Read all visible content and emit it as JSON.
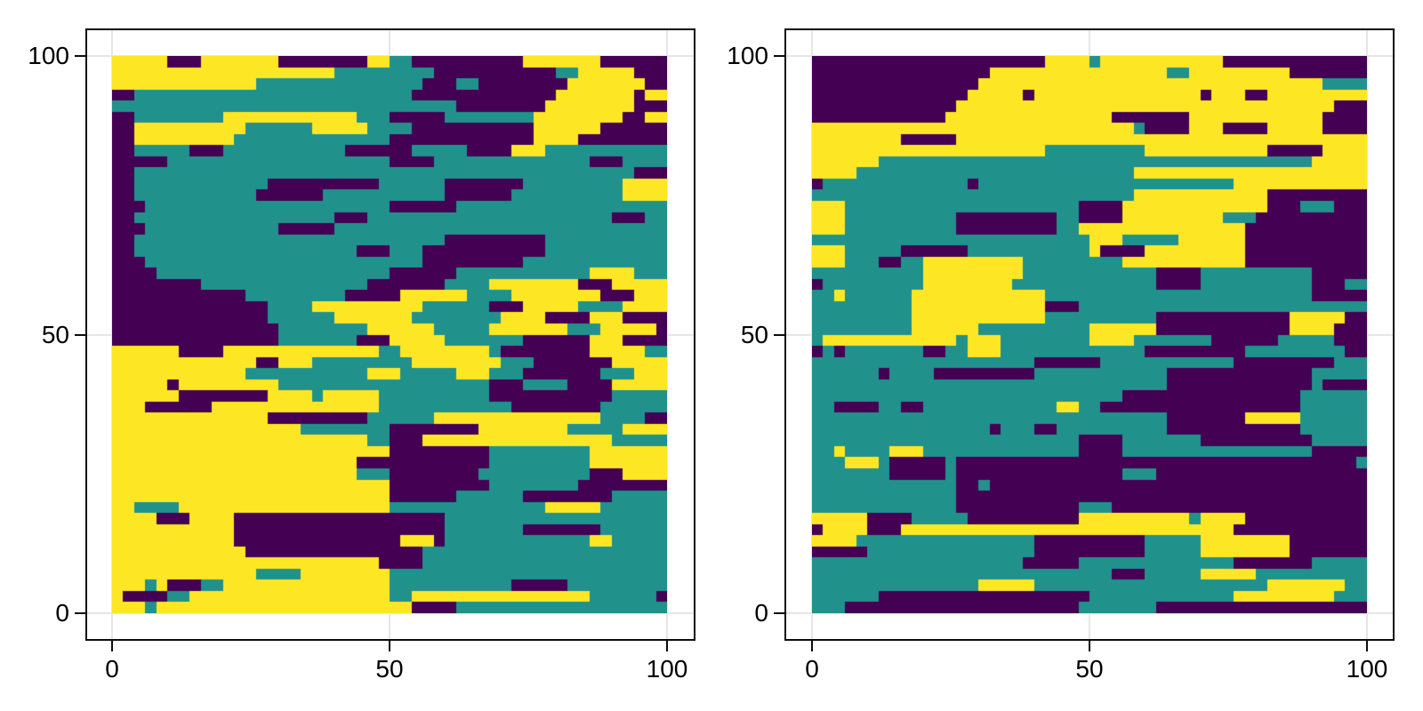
{
  "figure": {
    "background": "#ffffff",
    "description": "Two categorical random-field heatmap panels side by side"
  },
  "chart_data": {
    "type": "heatmap",
    "title": "",
    "xlabel": "",
    "ylabel": "",
    "x_range": [
      0,
      100
    ],
    "y_range": [
      0,
      100
    ],
    "axis_padding_units": 5,
    "x_ticks": [
      "0",
      "50",
      "100"
    ],
    "x_tick_values": [
      0,
      50,
      100
    ],
    "y_ticks": [
      "0",
      "50",
      "100"
    ],
    "y_tick_values": [
      0,
      50,
      100
    ],
    "grid": "light-gray-at-ticks",
    "legend": "none",
    "classes": [
      {
        "code": 0,
        "name": "class-1-purple",
        "color": "#440154"
      },
      {
        "code": 1,
        "name": "class-2-teal",
        "color": "#21918c"
      },
      {
        "code": 2,
        "name": "class-3-yellow",
        "color": "#fde725"
      }
    ],
    "grid_encoding": "Each panel is a 50x50 downsampled grid (cell = 2x2 data units). rows_rle lists rows from y=100 (top) to y=0 (bottom); tokens are codexcount, comma separated, summing to 50 per row.",
    "panels": [
      {
        "name": "left",
        "rows_rle": [
          "2x5,0x3,2x7,0x8,2x2,1x2,0x10,2x7,0x6",
          "2x20,1x9,0x11,1x2,2x5,0x3",
          "2x13,1x15,0x3,1x2,0x8,2x7,0x2",
          "0x2,1x25,0x13,2x7,0x1,2x2",
          "1x31,0x8,2x8,0x3",
          "0x2,1x8,2x12,1x3,0x5,1x8,2x8,0x2,2x2",
          "0x2,2x10,1x6,2x5,1x4,0x11,2x6,0x6",
          "0x2,2x9,1x14,0x13,2x4,0x8",
          "0x2,1x5,0x3,1x11,0x6,1x5,0x4,2x3,1x11",
          "0x5,1x20,0x4,1x14,0x3,1x4",
          "0x2,1x45,0x3",
          "0x2,1x12,0x10,1x6,0x7,1x9,2x4",
          "0x2,1x11,0x6,1x11,0x6,1x10,2x4",
          "0x3,1x22,0x6,1x19",
          "0x2,1x18,0x3,1x22,0x3,1x2",
          "0x3,1x12,0x5,1x30",
          "0x2,1x28,0x9,1x11",
          "0x2,1x20,0x3,1x3,0x11,1x11",
          "0x3,1x25,0x9,1x13",
          "0x4,1x21,0x6,1x12,2x4,1x3",
          "0x8,1x15,0x7,1x4,2x8,0x3,2x5",
          "0x12,1x9,0x5,2x6,1x4,2x8,0x3,2x3",
          "0x14,1x4,2x10,1x6,0x3,2x5,1x4,2x4",
          "0x14,1x6,2x7,1x8,2x4,0x4,2x3,0x4",
          "0x15,1x8,2x6,1x5,2x7,1x3,2x5,0x1",
          "0x15,1x7,0x3,2x5,1x7,0x6,2x3,0x4",
          "2x6,0x4,2x14,1x2,2x8,1x1,0x8,2x5,1x2",
          "2x13,0x2,2x3,1x9,2x8,1x3,0x7,2x5",
          "2x12,1x11,2x3,1x5,2x3,1x3,0x7,1x3,2x3",
          "2x5,0x1,2x9,1x19,0x3,1x4,0x4,2x5",
          "2x6,0x8,2x4,1x1,2x5,1x10,0x11,1x5",
          "2x3,0x6,2x15,1x12,0x8,1x6",
          "2x14,0x9,1x6,2x15,1x4,0x2",
          "2x17,1x8,0x8,2x8,1x5,2x4",
          "2x23,1x2,0x3,2x17,1x5",
          "2x25,0x9,1x9,2x7",
          "2x22,0x12,1x9,2x7",
          "2x22,1x3,0x8,1x10,0x3,2x4",
          "2x25,0x9,1x8,0x8",
          "2x25,0x6,1x6,0x8,1x5",
          "2x2,1x4,2x19,1x14,2x5,1x6",
          "2x4,0x3,2x4,0x19,1x20",
          "2x11,0x19,1x7,0x7,1x6",
          "2x11,0x15,2x3,0x1,1x13,2x2,1x5",
          "2x12,0x16,1x22",
          "2x24,0x4,1x22",
          "2x13,1x4,2x8,1x25",
          "2x3,1x1,2x1,0x3,1x2,2x15,1x11,0x5,1x9",
          "2x1,0x4,1x2,2x18,1x2,2x16,1x6,0x1",
          "2x3,1x1,2x23,0x4,1x19"
        ]
      },
      {
        "name": "right",
        "rows_rle": [
          "0x21,2x4,1x1,2x11,0x13",
          "0x16,2x16,1x2,2x9,0x7",
          "0x15,2x31,1x4",
          "0x14,2x5,0x1,2x15,0x1,2x3,0x2,2x9",
          "0x13,2x34,0x3",
          "0x12,2x15,0x7,2x12,0x4",
          "2x29,1x1,0x4,2x3,0x4,2x5,0x4",
          "2x8,0x5,2x37",
          "2x21,1x9,2x11,0x5,2x4",
          "2x6,1x39,2x5",
          "2x4,1x25,2x21",
          "0x1,1x13,0x1,1x23,2x12",
          "1x29,2x12,0x9",
          "2x3,1x21,0x4,2x13,0x3,1x3,0x3",
          "2x3,1x10,0x9,1x2,0x4,2x9,1x3,0x10",
          "2x3,1x10,0x9,1x2,2x15,0x11",
          "1x25,2x3,1x5,2x6,0x11",
          "2x3,1x5,0x6,1x11,2x1,0x4,2x9,0x11",
          "2x3,1x3,0x2,1x2,2x9,1x9,2x11,0x11",
          "1x10,2x9,1x12,0x4,1x10,0x5",
          "0x1,1x9,2x8,1x13,0x4,1x10,0x3,1x2",
          "1x2,2x1,1x6,2x12,1x24,0x5",
          "1x9,2x12,0x3,1x26",
          "1x9,2x12,1x10,0x12,2x5,0x2",
          "1x9,2x6,1x10,2x6,0x12,2x4,0x3",
          "1x1,2x12,1x1,2x3,1x8,2x4,1x7,0x6,1x5,0x3",
          "0x1,1x1,0x1,1x7,0x2,1x2,2x3,1x13,0x9,1x9,0x2",
          "1x20,0x6,1x12,0x9,1x3",
          "1x6,0x1,1x4,0x9,1x12,0x13,1x5",
          "1x32,0x13,1x1,0x4",
          "1x28,0x16,1x6",
          "1x2,0x4,1x2,0x2,1x12,2x2,1x2,0x18,1x6",
          "1x32,0x7,2x5,1x6",
          "1x16,0x1,1x3,0x2,1x10,0x12,1x6",
          "1x24,0x4,1x7,0x10,1x5",
          "1x2,2x1,1x4,2x3,1x14,0x4,1x17,0x5",
          "1x3,2x3,1x1,0x5,1x1,0x36,1x1",
          "1x7,0x5,1x1,0x15,1x3,0x19",
          "1x13,0x2,1x1,0x34",
          "1x13,0x37",
          "1x13,0x11,1x3,0x23",
          "2x5,0x4,1x5,0x10,2x10,1x1,2x4,0x11",
          "0x1,2x4,0x3,2x30,0x12",
          "2x4,1x16,0x10,1x5,2x8,0x7",
          "0x5,1x15,0x10,1x5,2x8,0x7",
          "1x19,0x5,1x14,0x7,1x5",
          "1x27,0x3,1x5,2x5,1x10",
          "1x15,2x5,1x21,2x7,1x2",
          "1x6,0x19,1x13,2x9,1x3",
          "1x3,0x21,1x7,0x19"
        ]
      }
    ]
  },
  "style": {
    "spine_color": "#0c0c0c",
    "gridline_color": "#e6e6e6",
    "tick_color": "#0c0c0c",
    "label_color": "#000000"
  }
}
